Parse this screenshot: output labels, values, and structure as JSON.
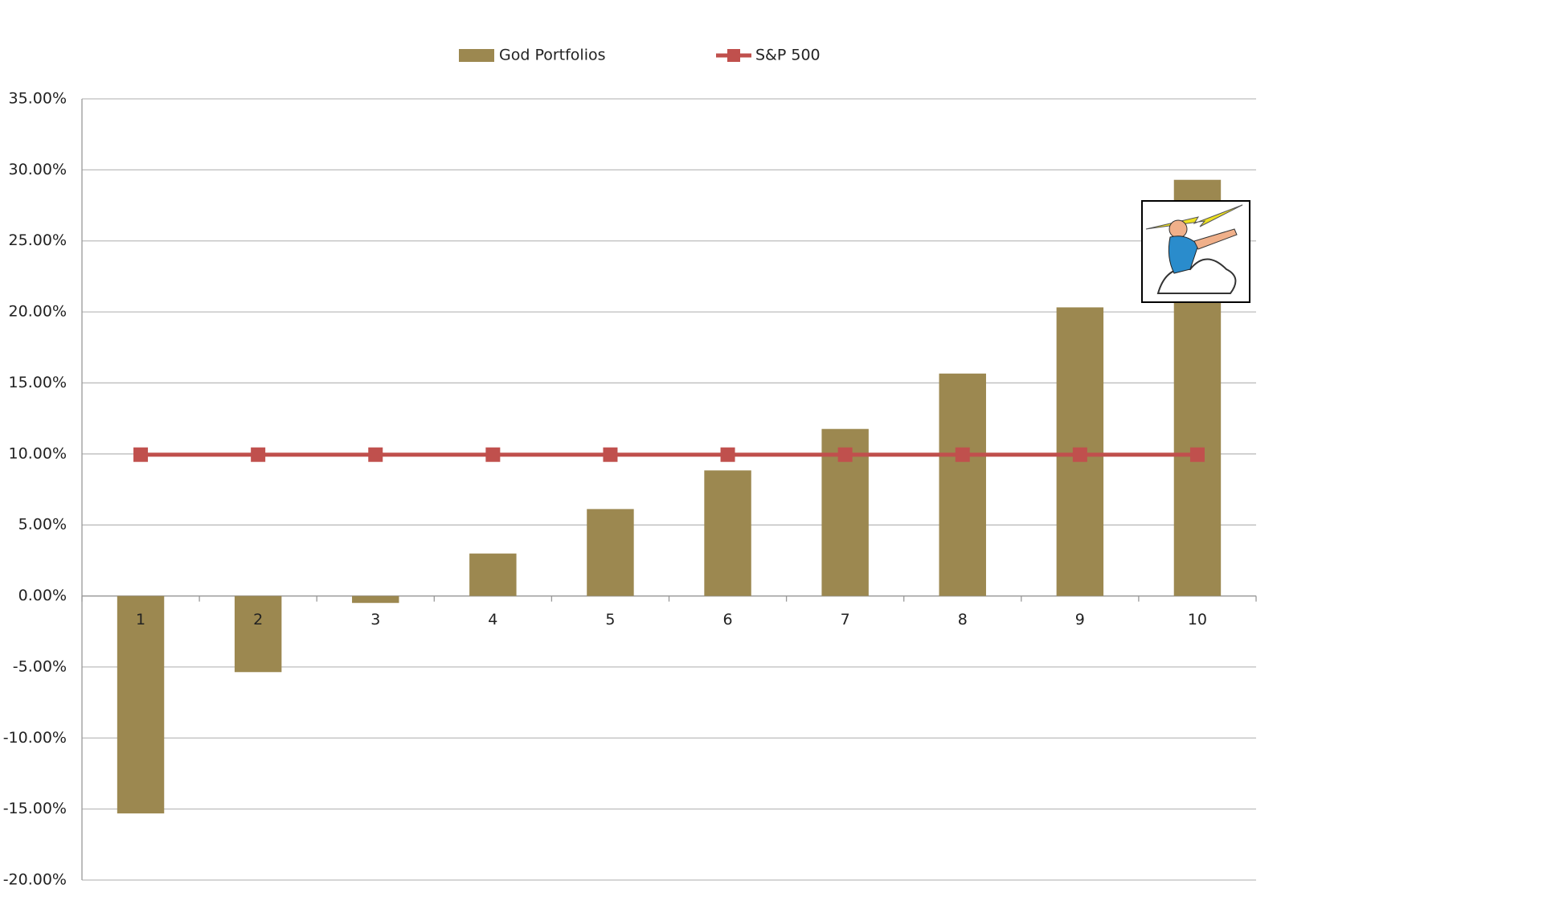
{
  "chart_data": {
    "type": "bar",
    "categories": [
      "1",
      "2",
      "3",
      "4",
      "5",
      "6",
      "7",
      "8",
      "9",
      "10"
    ],
    "series": [
      {
        "name": "God Portfolios",
        "type": "bar",
        "color": "#9c8850",
        "values": [
          -15.31,
          -5.36,
          -0.49,
          2.99,
          6.12,
          8.84,
          11.76,
          15.66,
          20.32,
          29.3
        ]
      },
      {
        "name": "S&P 500",
        "type": "line",
        "color": "#c0504d",
        "values": [
          9.95,
          9.95,
          9.95,
          9.95,
          9.95,
          9.95,
          9.95,
          9.95,
          9.95,
          9.95
        ]
      }
    ],
    "ylim": [
      -20,
      35
    ],
    "yticks": [
      {
        "value": -20,
        "label": "-20.00%"
      },
      {
        "value": -15,
        "label": "-15.00%"
      },
      {
        "value": -10,
        "label": "-10.00%"
      },
      {
        "value": -5,
        "label": "-5.00%"
      },
      {
        "value": 0,
        "label": "0.00%"
      },
      {
        "value": 5,
        "label": "5.00%"
      },
      {
        "value": 10,
        "label": "10.00%"
      },
      {
        "value": 15,
        "label": "15.00%"
      },
      {
        "value": 20,
        "label": "20.00%"
      },
      {
        "value": 25,
        "label": "25.00%"
      },
      {
        "value": 30,
        "label": "30.00%"
      },
      {
        "value": 35,
        "label": "35.00%"
      }
    ],
    "grid": true,
    "legend": "top"
  }
}
